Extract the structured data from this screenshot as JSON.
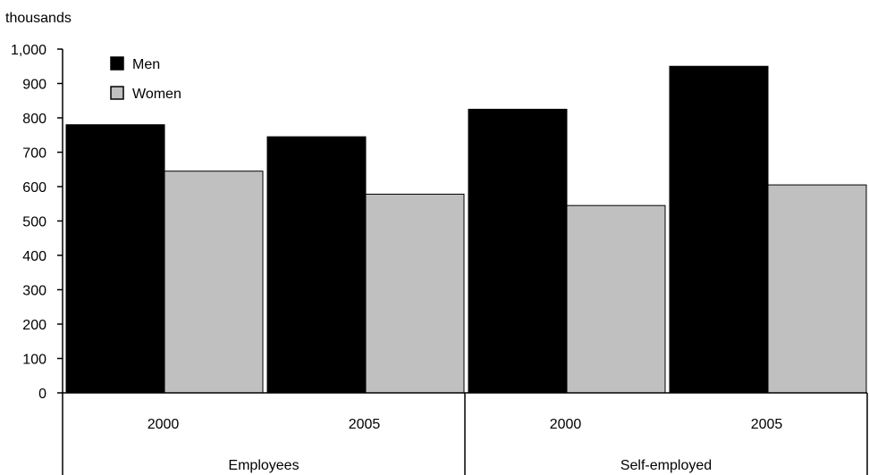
{
  "chart_data": {
    "type": "bar",
    "ylabel": "thousands",
    "ylim": [
      0,
      1000
    ],
    "yticks": [
      0,
      100,
      200,
      300,
      400,
      500,
      600,
      700,
      800,
      900,
      1000
    ],
    "ytick_labels": [
      "0",
      "100",
      "200",
      "300",
      "400",
      "500",
      "600",
      "700",
      "800",
      "900",
      "1,000"
    ],
    "groups": [
      {
        "label": "Employees",
        "categories": [
          "2000",
          "2005"
        ]
      },
      {
        "label": "Self-employed",
        "categories": [
          "2000",
          "2005"
        ]
      }
    ],
    "series": [
      {
        "name": "Men",
        "color": "#000000",
        "values": [
          780,
          745,
          825,
          950
        ]
      },
      {
        "name": "Women",
        "color": "#c0c0c0",
        "values": [
          645,
          578,
          545,
          605
        ]
      }
    ],
    "legend_position": "top-left",
    "grid": false
  }
}
